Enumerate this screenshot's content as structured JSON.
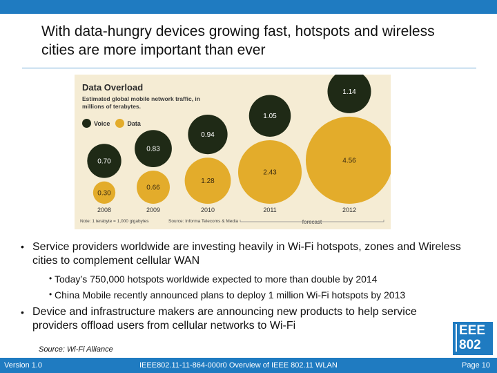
{
  "slide": {
    "title": "With data-hungry devices growing fast, hotspots and wireless cities are more important than ever",
    "source": "Source: Wi-Fi Alliance",
    "footer_left": "Version 1.0",
    "footer_center": "IEEE802.11-11-864-000r0  Overview of IEEE 802.11 WLAN",
    "footer_right": "Page 10",
    "logo_line1": "EEE",
    "logo_line2": "802"
  },
  "bullets": {
    "b1": "Service providers worldwide are investing heavily in Wi-Fi hotspots, zones and Wireless cities to complement cellular WAN",
    "b1_sub1": "Today’s 750,000 hotspots worldwide expected to more than double by 2014",
    "b1_sub2": "China Mobile recently announced plans to deploy 1 million Wi-Fi hotspots by 2013",
    "b2": "Device and infrastructure makers are announcing new products to help service providers offload users from cellular networks to Wi-Fi",
    "marker": "•"
  },
  "chart_data": {
    "type": "bubble",
    "title": "Data Overload",
    "subtitle": "Estimated global mobile network traffic, in millions of terabytes.",
    "note": "Note: 1 terabyte = 1,000 gigabytes",
    "source": "Source: Informa Telecoms & Media",
    "forecast_label": "forecast",
    "categories": [
      "2008",
      "2009",
      "2010",
      "2011",
      "2012"
    ],
    "series": [
      {
        "name": "Voice",
        "values": [
          0.7,
          0.83,
          0.94,
          1.05,
          1.14
        ]
      },
      {
        "name": "Data",
        "values": [
          0.3,
          0.66,
          1.28,
          2.43,
          4.56
        ]
      }
    ],
    "colors": {
      "Voice": "#1f2a16",
      "Data": "#e3ac2b",
      "background": "#f5ecd4"
    }
  }
}
